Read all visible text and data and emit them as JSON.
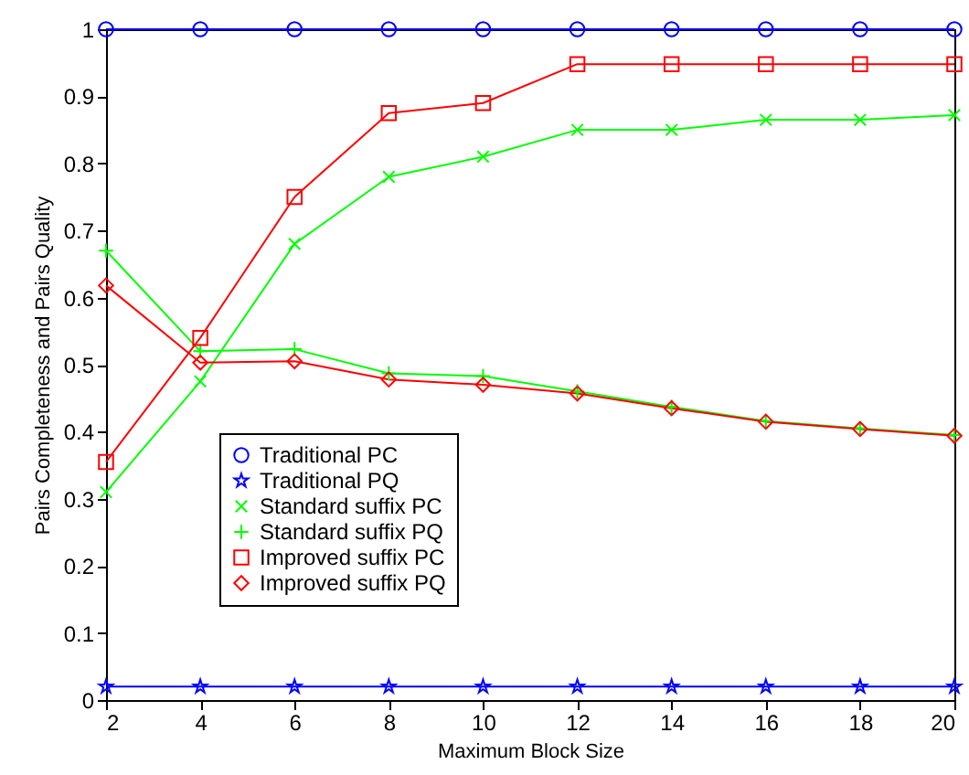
{
  "chart_data": {
    "type": "line",
    "xlabel": "Maximum Block Size",
    "ylabel": "Pairs Completeness and Pairs Quality",
    "x": [
      2,
      4,
      6,
      8,
      10,
      12,
      14,
      16,
      18,
      20
    ],
    "series": [
      {
        "name": "Traditional PC",
        "color": "#0000ff",
        "marker": "circle",
        "values": [
          1,
          1,
          1,
          1,
          1,
          1,
          1,
          1,
          1,
          1
        ]
      },
      {
        "name": "Traditional PQ",
        "color": "#0000ff",
        "marker": "star",
        "values": [
          0.02,
          0.02,
          0.02,
          0.02,
          0.02,
          0.02,
          0.02,
          0.02,
          0.02,
          0.02
        ]
      },
      {
        "name": "Standard suffix PC",
        "color": "#00ff00",
        "marker": "cross",
        "values": [
          0.31,
          0.475,
          0.68,
          0.78,
          0.81,
          0.85,
          0.85,
          0.865,
          0.865,
          0.872
        ]
      },
      {
        "name": "Standard suffix PQ",
        "color": "#00ff00",
        "marker": "plus",
        "values": [
          0.67,
          0.52,
          0.523,
          0.487,
          0.483,
          0.46,
          0.437,
          0.416,
          0.405,
          0.395
        ]
      },
      {
        "name": "Improved suffix PC",
        "color": "#ff0000",
        "marker": "square",
        "values": [
          0.355,
          0.54,
          0.75,
          0.875,
          0.89,
          0.948,
          0.948,
          0.948,
          0.948,
          0.948
        ]
      },
      {
        "name": "Improved suffix PQ",
        "color": "#ff0000",
        "marker": "diamond",
        "values": [
          0.618,
          0.503,
          0.505,
          0.478,
          0.47,
          0.457,
          0.435,
          0.415,
          0.404,
          0.394
        ]
      }
    ],
    "xlim": [
      2,
      20
    ],
    "xticks": [
      2,
      4,
      6,
      8,
      10,
      12,
      14,
      16,
      18,
      20
    ],
    "ylim": [
      0,
      1
    ],
    "yticks": [
      0,
      0.1,
      0.2,
      0.3,
      0.4,
      0.5,
      0.6,
      0.7,
      0.8,
      0.9,
      1
    ],
    "grid": false,
    "legend": "bottom left",
    "line_style": "solid"
  }
}
